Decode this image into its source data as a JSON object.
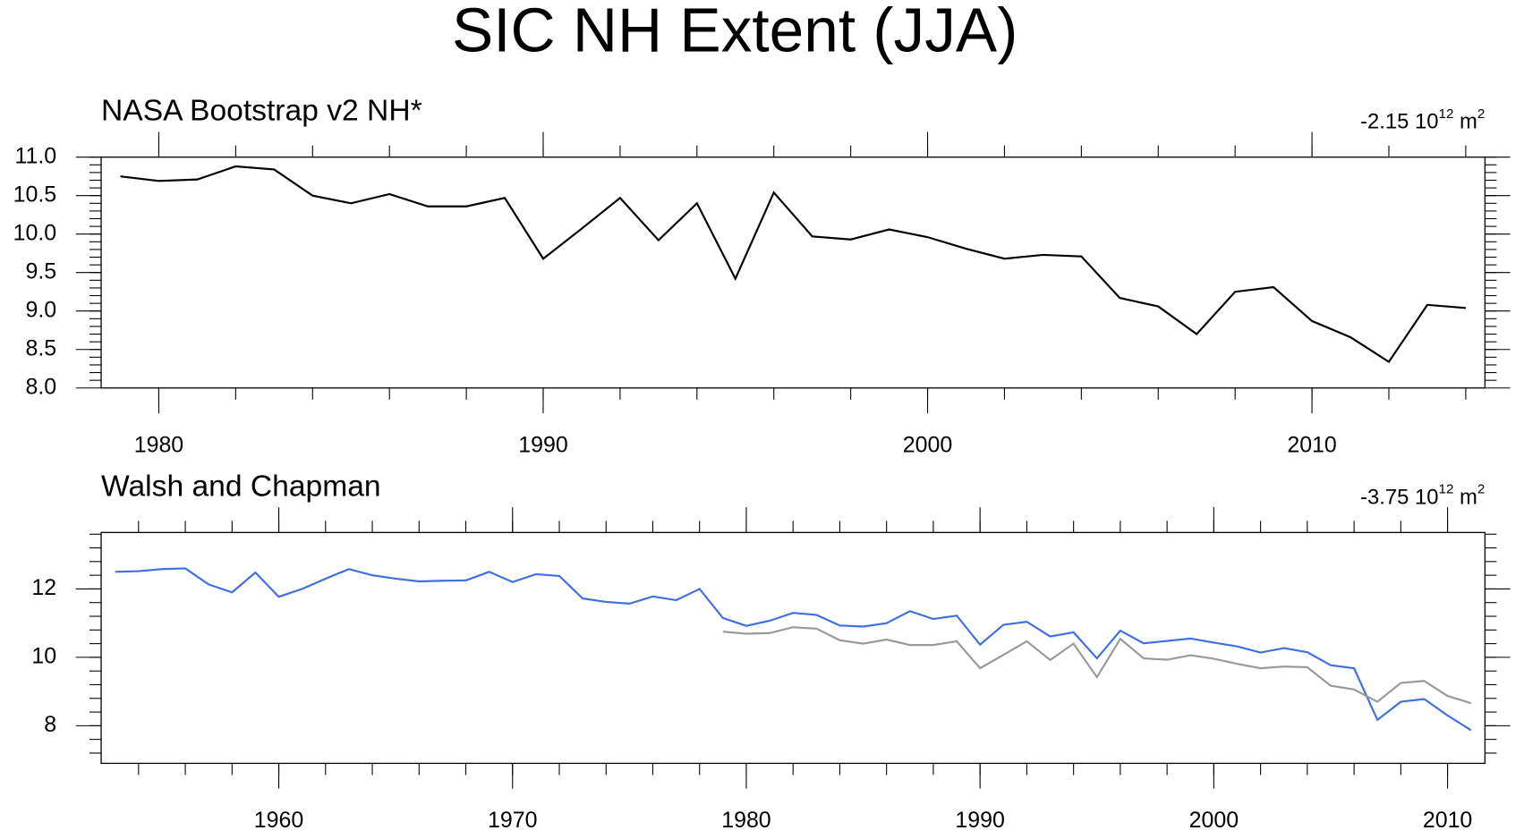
{
  "title": "SIC NH Extent (JJA)",
  "chart_data": [
    {
      "type": "line",
      "subtitle": "NASA Bootstrap v2 NH*",
      "annotation": [
        "-2.15 10",
        "12",
        " m",
        "2"
      ],
      "x": [
        1979,
        1980,
        1981,
        1982,
        1983,
        1984,
        1985,
        1986,
        1987,
        1988,
        1989,
        1990,
        1991,
        1992,
        1993,
        1994,
        1995,
        1996,
        1997,
        1998,
        1999,
        2000,
        2001,
        2002,
        2003,
        2004,
        2005,
        2006,
        2007,
        2008,
        2009,
        2010,
        2011,
        2012,
        2013,
        2014
      ],
      "series": [
        {
          "color": "#000000",
          "values": [
            10.75,
            10.69,
            10.71,
            10.88,
            10.84,
            10.5,
            10.4,
            10.52,
            10.36,
            10.36,
            10.47,
            9.68,
            10.07,
            10.47,
            9.92,
            10.4,
            9.42,
            10.54,
            9.97,
            9.93,
            10.06,
            9.96,
            9.81,
            9.68,
            9.73,
            9.71,
            9.17,
            9.06,
            8.7,
            9.25,
            9.31,
            8.87,
            8.66,
            8.34,
            9.08,
            9.04
          ]
        }
      ],
      "xlim": [
        1978.5,
        2014.5
      ],
      "xticks": [
        1980,
        1990,
        2000,
        2010
      ],
      "ylim": [
        8,
        11
      ],
      "yticks": [
        {
          "value": 8,
          "label": "8.0"
        },
        {
          "value": 8.5,
          "label": "8.5"
        },
        {
          "value": 9,
          "label": "9.0"
        },
        {
          "value": 9.5,
          "label": "9.5"
        },
        {
          "value": 10,
          "label": "10.0"
        },
        {
          "value": 10.5,
          "label": "10.5"
        },
        {
          "value": 11,
          "label": "11.0"
        }
      ]
    },
    {
      "type": "line",
      "subtitle": "Walsh and Chapman",
      "annotation": [
        "-3.75 10",
        "12",
        " m",
        "2"
      ],
      "x": [
        1953,
        1954,
        1955,
        1956,
        1957,
        1958,
        1959,
        1960,
        1961,
        1962,
        1963,
        1964,
        1965,
        1966,
        1967,
        1968,
        1969,
        1970,
        1971,
        1972,
        1973,
        1974,
        1975,
        1976,
        1977,
        1978,
        1979,
        1980,
        1981,
        1982,
        1983,
        1984,
        1985,
        1986,
        1987,
        1988,
        1989,
        1990,
        1991,
        1992,
        1993,
        1994,
        1995,
        1996,
        1997,
        1998,
        1999,
        2000,
        2001,
        2002,
        2003,
        2004,
        2005,
        2006,
        2007,
        2008,
        2009,
        2010,
        2011
      ],
      "series": [
        {
          "color": "#3f6fe0",
          "values": [
            12.5,
            12.52,
            12.58,
            12.6,
            12.13,
            11.9,
            12.48,
            11.77,
            12.0,
            12.3,
            12.58,
            12.4,
            12.3,
            12.22,
            12.24,
            12.25,
            12.5,
            12.2,
            12.43,
            12.38,
            11.72,
            11.62,
            11.57,
            11.78,
            11.67,
            12.0,
            11.15,
            10.92,
            11.07,
            11.3,
            11.24,
            10.93,
            10.9,
            11.0,
            11.35,
            11.12,
            11.22,
            10.37,
            10.95,
            11.04,
            10.61,
            10.73,
            9.97,
            10.78,
            10.41,
            10.48,
            10.55,
            10.43,
            10.32,
            10.14,
            10.27,
            10.15,
            9.77,
            9.68,
            8.17,
            8.7,
            8.78,
            8.3,
            7.87
          ]
        },
        {
          "color": "#999999",
          "values": [
            null,
            null,
            null,
            null,
            null,
            null,
            null,
            null,
            null,
            null,
            null,
            null,
            null,
            null,
            null,
            null,
            null,
            null,
            null,
            null,
            null,
            null,
            null,
            null,
            null,
            null,
            10.75,
            10.69,
            10.71,
            10.88,
            10.84,
            10.5,
            10.4,
            10.52,
            10.36,
            10.36,
            10.47,
            9.68,
            10.07,
            10.47,
            9.92,
            10.4,
            9.42,
            10.54,
            9.97,
            9.93,
            10.06,
            9.96,
            9.81,
            9.68,
            9.73,
            9.71,
            9.17,
            9.06,
            8.7,
            9.25,
            9.31,
            8.87,
            8.66
          ]
        }
      ],
      "xlim": [
        1952.4,
        2011.6
      ],
      "xticks": [
        1960,
        1970,
        1980,
        1990,
        2000,
        2010
      ],
      "ylim": [
        6.9,
        13.65
      ],
      "yticks": [
        8,
        10,
        12
      ]
    }
  ]
}
